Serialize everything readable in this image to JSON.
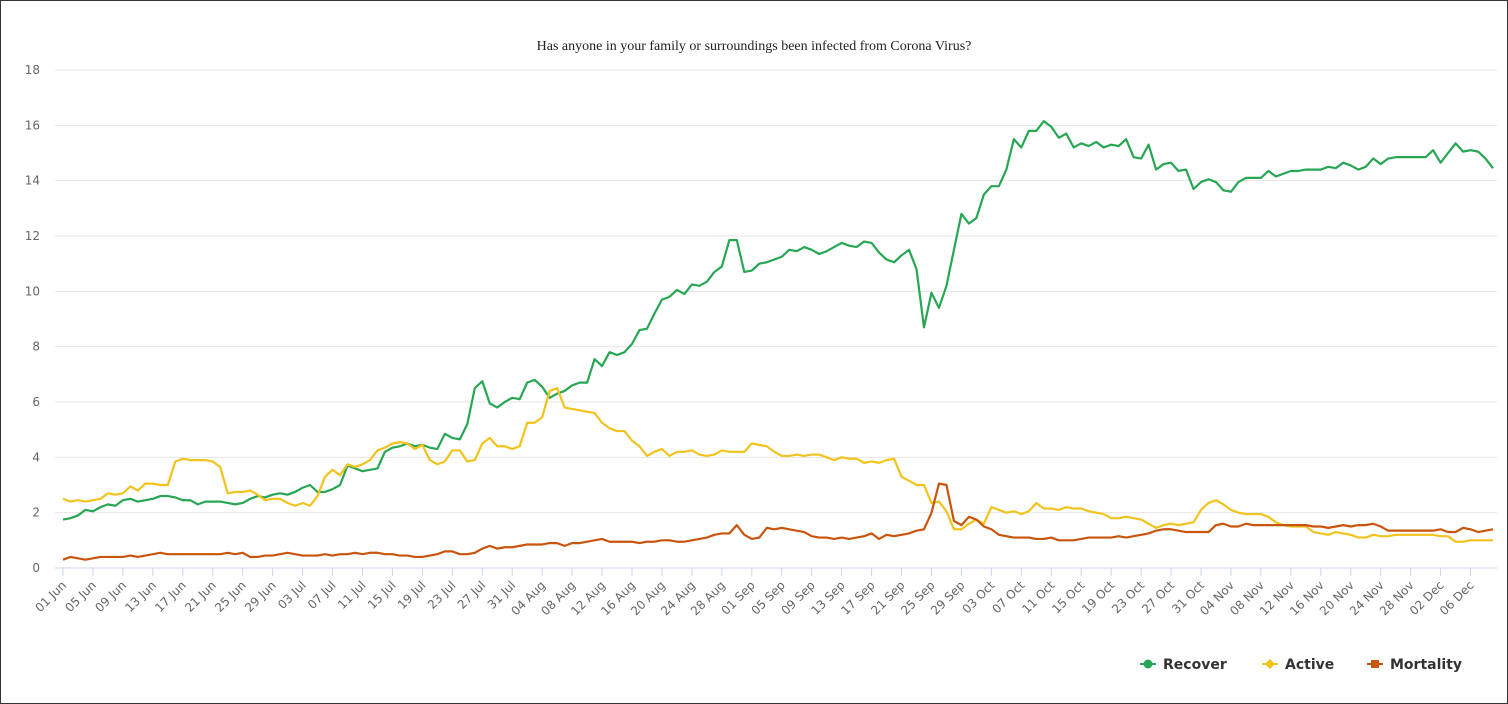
{
  "chart_data": {
    "type": "line",
    "title": "Has anyone in your family or surroundings been infected from Corona Virus?",
    "categories": [
      "01 Jun",
      null,
      null,
      null,
      "05 Jun",
      null,
      null,
      null,
      "09 Jun",
      null,
      null,
      null,
      "13 Jun",
      null,
      null,
      null,
      "17 Jun",
      null,
      null,
      null,
      "21 Jun",
      null,
      null,
      null,
      "25 Jun",
      null,
      null,
      null,
      "29 Jun",
      null,
      null,
      null,
      "03 Jul",
      null,
      null,
      null,
      "07 Jul",
      null,
      null,
      null,
      "11 Jul",
      null,
      null,
      null,
      "15 Jul",
      null,
      null,
      null,
      "19 Jul",
      null,
      null,
      null,
      "23 Jul",
      null,
      null,
      null,
      "27 Jul",
      null,
      null,
      null,
      "31 Jul",
      null,
      null,
      null,
      "04 Aug",
      null,
      null,
      null,
      "08 Aug",
      null,
      null,
      null,
      "12 Aug",
      null,
      null,
      null,
      "16 Aug",
      null,
      null,
      null,
      "20 Aug",
      null,
      null,
      null,
      "24 Aug",
      null,
      null,
      null,
      "28 Aug",
      null,
      null,
      null,
      "01 Sep",
      null,
      null,
      null,
      "05 Sep",
      null,
      null,
      null,
      "09 Sep",
      null,
      null,
      null,
      "13 Sep",
      null,
      null,
      null,
      "17 Sep",
      null,
      null,
      null,
      "21 Sep",
      null,
      null,
      null,
      "25 Sep",
      null,
      null,
      null,
      "29 Sep",
      null,
      null,
      null,
      "03 Oct",
      null,
      null,
      null,
      "07 Oct",
      null,
      null,
      null,
      "11 Oct",
      null,
      null,
      null,
      "15 Oct",
      null,
      null,
      null,
      "19 Oct",
      null,
      null,
      null,
      "23 Oct",
      null,
      null,
      null,
      "27 Oct",
      null,
      null,
      null,
      "31 Oct",
      null,
      null,
      null,
      "04 Nov",
      null,
      null,
      null,
      "08 Nov",
      null,
      null,
      null,
      "12 Nov",
      null,
      null,
      null,
      "16 Nov",
      null,
      null,
      null,
      "20 Nov",
      null,
      null,
      null,
      "24 Nov",
      null,
      null,
      null,
      "28 Nov",
      null,
      null,
      null,
      "02 Dec",
      null,
      null,
      null,
      "06 Dec",
      null,
      null,
      null
    ],
    "series": [
      {
        "name": "Recover",
        "color": "#27a653",
        "marker": "circle",
        "values": [
          1.75,
          1.8,
          1.9,
          2.1,
          2.05,
          2.2,
          2.3,
          2.25,
          2.45,
          2.5,
          2.4,
          2.45,
          2.5,
          2.6,
          2.6,
          2.55,
          2.45,
          2.45,
          2.3,
          2.4,
          2.4,
          2.4,
          2.35,
          2.3,
          2.35,
          2.5,
          2.6,
          2.55,
          2.65,
          2.7,
          2.65,
          2.75,
          2.9,
          3.0,
          2.75,
          2.75,
          2.85,
          3.0,
          3.7,
          3.6,
          3.5,
          3.55,
          3.6,
          4.2,
          4.35,
          4.4,
          4.5,
          4.4,
          4.45,
          4.35,
          4.3,
          4.85,
          4.7,
          4.65,
          5.2,
          6.5,
          6.75,
          5.95,
          5.8,
          6.0,
          6.15,
          6.1,
          6.7,
          6.8,
          6.55,
          6.15,
          6.3,
          6.4,
          6.6,
          6.7,
          6.7,
          7.55,
          7.3,
          7.8,
          7.7,
          7.8,
          8.1,
          8.6,
          8.65,
          9.2,
          9.7,
          9.8,
          10.05,
          9.9,
          10.25,
          10.2,
          10.35,
          10.7,
          10.9,
          11.85,
          11.85,
          10.7,
          10.75,
          11.0,
          11.05,
          11.15,
          11.25,
          11.5,
          11.45,
          11.6,
          11.5,
          11.35,
          11.45,
          11.6,
          11.75,
          11.65,
          11.6,
          11.8,
          11.75,
          11.4,
          11.15,
          11.05,
          11.3,
          11.5,
          10.8,
          8.7,
          9.95,
          9.4,
          10.2,
          11.5,
          12.8,
          12.45,
          12.65,
          13.5,
          13.8,
          13.8,
          14.4,
          15.5,
          15.2,
          15.8,
          15.8,
          16.15,
          15.95,
          15.55,
          15.7,
          15.2,
          15.35,
          15.25,
          15.4,
          15.2,
          15.3,
          15.25,
          15.5,
          14.85,
          14.8,
          15.3,
          14.4,
          14.6,
          14.65,
          14.35,
          14.4,
          13.7,
          13.95,
          14.05,
          13.95,
          13.65,
          13.6,
          13.95,
          14.1,
          14.1,
          14.1,
          14.35,
          14.15,
          14.25,
          14.35,
          14.35,
          14.4,
          14.4,
          14.4,
          14.5,
          14.45,
          14.65,
          14.55,
          14.4,
          14.5,
          14.8,
          14.6,
          14.8,
          14.85,
          14.85,
          14.85,
          14.85,
          14.85,
          15.1,
          14.65,
          15.0,
          15.35,
          15.05,
          15.1,
          15.05,
          14.8,
          14.45
        ]
      },
      {
        "name": "Active",
        "color": "#f2c31c",
        "marker": "diamond",
        "values": [
          2.5,
          2.4,
          2.45,
          2.4,
          2.45,
          2.5,
          2.7,
          2.65,
          2.7,
          2.95,
          2.8,
          3.05,
          3.05,
          3.0,
          3.0,
          3.85,
          3.95,
          3.9,
          3.9,
          3.9,
          3.85,
          3.65,
          2.7,
          2.75,
          2.75,
          2.8,
          2.65,
          2.45,
          2.5,
          2.5,
          2.35,
          2.25,
          2.35,
          2.25,
          2.6,
          3.3,
          3.55,
          3.35,
          3.75,
          3.65,
          3.75,
          3.9,
          4.25,
          4.35,
          4.5,
          4.55,
          4.5,
          4.3,
          4.45,
          3.9,
          3.75,
          3.85,
          4.25,
          4.25,
          3.85,
          3.9,
          4.5,
          4.7,
          4.4,
          4.4,
          4.3,
          4.4,
          5.25,
          5.25,
          5.45,
          6.4,
          6.5,
          5.8,
          5.75,
          5.7,
          5.65,
          5.6,
          5.25,
          5.05,
          4.95,
          4.95,
          4.6,
          4.4,
          4.05,
          4.2,
          4.3,
          4.05,
          4.2,
          4.2,
          4.25,
          4.1,
          4.05,
          4.1,
          4.25,
          4.2,
          4.2,
          4.2,
          4.5,
          4.45,
          4.4,
          4.2,
          4.05,
          4.05,
          4.1,
          4.05,
          4.1,
          4.1,
          4.0,
          3.9,
          4.0,
          3.95,
          3.95,
          3.8,
          3.85,
          3.8,
          3.9,
          3.95,
          3.3,
          3.15,
          3.0,
          3.0,
          2.35,
          2.4,
          2.05,
          1.4,
          1.4,
          1.6,
          1.75,
          1.6,
          2.2,
          2.1,
          2.0,
          2.05,
          1.95,
          2.05,
          2.35,
          2.15,
          2.15,
          2.1,
          2.2,
          2.15,
          2.15,
          2.05,
          2.0,
          1.95,
          1.8,
          1.8,
          1.85,
          1.8,
          1.75,
          1.6,
          1.45,
          1.55,
          1.6,
          1.55,
          1.6,
          1.65,
          2.1,
          2.35,
          2.45,
          2.3,
          2.1,
          2.0,
          1.95,
          1.95,
          1.95,
          1.85,
          1.65,
          1.55,
          1.5,
          1.5,
          1.5,
          1.3,
          1.25,
          1.2,
          1.3,
          1.25,
          1.2,
          1.1,
          1.1,
          1.2,
          1.15,
          1.15,
          1.2,
          1.2,
          1.2,
          1.2,
          1.2,
          1.2,
          1.15,
          1.15,
          0.95,
          0.95,
          1.0,
          1.0,
          1.0,
          1.0
        ]
      },
      {
        "name": "Mortality",
        "color": "#c9540c",
        "marker": "square",
        "values": [
          0.3,
          0.4,
          0.35,
          0.3,
          0.35,
          0.4,
          0.4,
          0.4,
          0.4,
          0.45,
          0.4,
          0.45,
          0.5,
          0.55,
          0.5,
          0.5,
          0.5,
          0.5,
          0.5,
          0.5,
          0.5,
          0.5,
          0.55,
          0.5,
          0.55,
          0.4,
          0.4,
          0.45,
          0.45,
          0.5,
          0.55,
          0.5,
          0.45,
          0.45,
          0.45,
          0.5,
          0.45,
          0.5,
          0.5,
          0.55,
          0.5,
          0.55,
          0.55,
          0.5,
          0.5,
          0.45,
          0.45,
          0.4,
          0.4,
          0.45,
          0.5,
          0.6,
          0.6,
          0.5,
          0.5,
          0.55,
          0.7,
          0.8,
          0.7,
          0.75,
          0.75,
          0.8,
          0.85,
          0.85,
          0.85,
          0.9,
          0.9,
          0.8,
          0.9,
          0.9,
          0.95,
          1.0,
          1.05,
          0.95,
          0.95,
          0.95,
          0.95,
          0.9,
          0.95,
          0.95,
          1.0,
          1.0,
          0.95,
          0.95,
          1.0,
          1.05,
          1.1,
          1.2,
          1.25,
          1.25,
          1.55,
          1.2,
          1.05,
          1.1,
          1.45,
          1.4,
          1.45,
          1.4,
          1.35,
          1.3,
          1.15,
          1.1,
          1.1,
          1.05,
          1.1,
          1.05,
          1.1,
          1.15,
          1.25,
          1.05,
          1.2,
          1.15,
          1.2,
          1.25,
          1.35,
          1.4,
          2.0,
          3.05,
          3.0,
          1.7,
          1.55,
          1.85,
          1.75,
          1.5,
          1.4,
          1.2,
          1.15,
          1.1,
          1.1,
          1.1,
          1.05,
          1.05,
          1.1,
          1.0,
          1.0,
          1.0,
          1.05,
          1.1,
          1.1,
          1.1,
          1.1,
          1.15,
          1.1,
          1.15,
          1.2,
          1.25,
          1.35,
          1.4,
          1.4,
          1.35,
          1.3,
          1.3,
          1.3,
          1.3,
          1.55,
          1.6,
          1.5,
          1.5,
          1.6,
          1.55,
          1.55,
          1.55,
          1.55,
          1.55,
          1.55,
          1.55,
          1.55,
          1.5,
          1.5,
          1.45,
          1.5,
          1.55,
          1.5,
          1.55,
          1.55,
          1.6,
          1.5,
          1.35,
          1.35,
          1.35,
          1.35,
          1.35,
          1.35,
          1.35,
          1.4,
          1.3,
          1.3,
          1.45,
          1.4,
          1.3,
          1.35,
          1.4
        ]
      }
    ],
    "ylim": [
      0,
      18
    ],
    "yticks": [
      0,
      2,
      4,
      6,
      8,
      10,
      12,
      14,
      16,
      18
    ],
    "grid": true,
    "legend": "bottom-right"
  }
}
